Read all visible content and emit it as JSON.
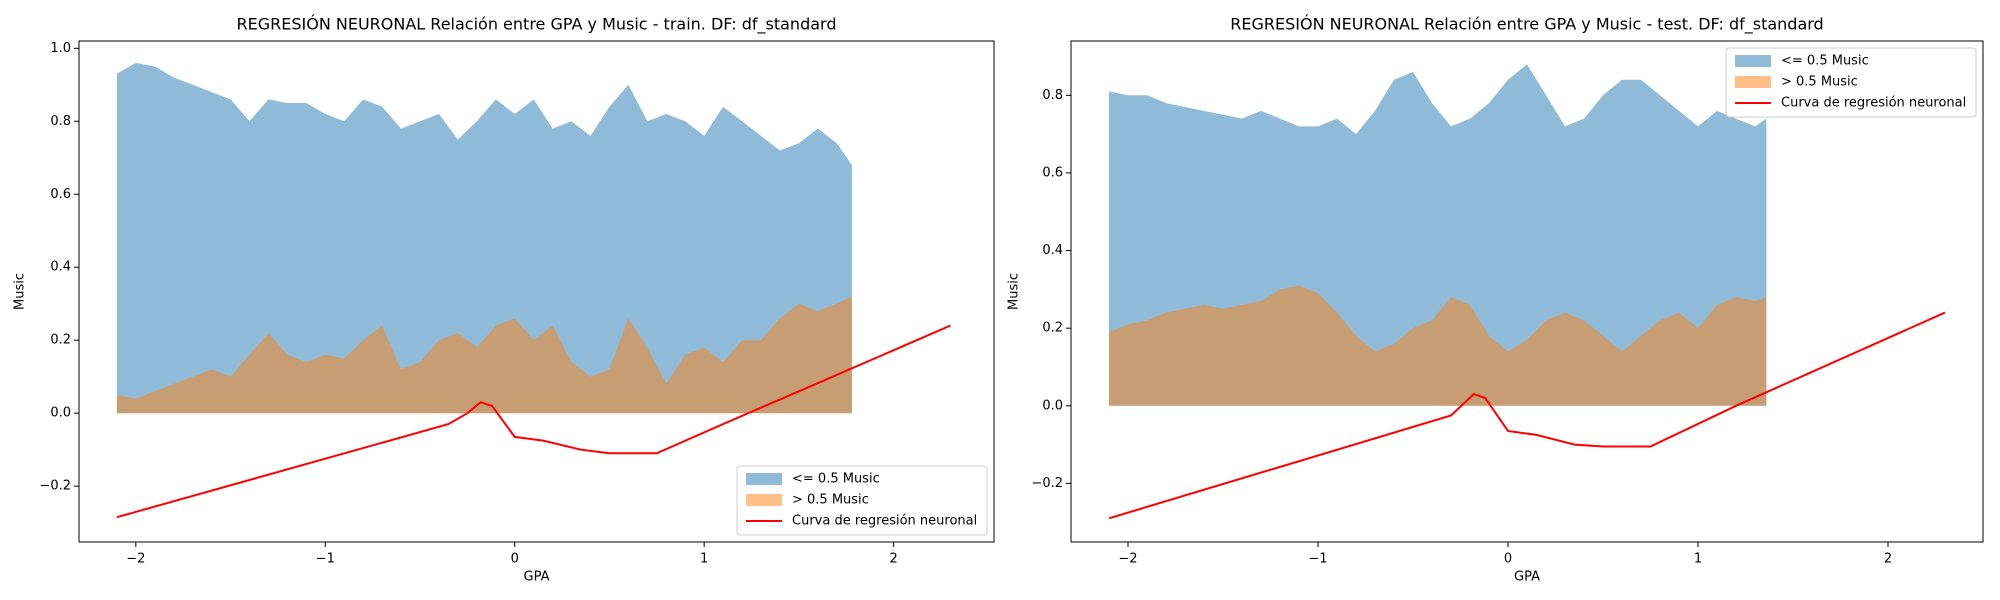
{
  "chart_data": [
    {
      "type": "area",
      "title": "REGRESIÓN NEURONAL Relación entre GPA y Music - train. DF: df_standard",
      "x_label": "GPA",
      "y_label": "Music",
      "legend": "lower right",
      "xlim": [
        -2.3,
        2.53
      ],
      "ylim": [
        -0.353,
        1.02
      ],
      "xticks": [
        {
          "value": -2,
          "label": "−2"
        },
        {
          "value": -1,
          "label": "−1"
        },
        0,
        1,
        2
      ],
      "yticks": [
        {
          "value": -0.2,
          "label": "−0.2"
        },
        {
          "value": 0,
          "label": "0.0"
        },
        0.2,
        0.4,
        0.6,
        0.8,
        {
          "value": 1,
          "label": "1.0"
        }
      ],
      "series": [
        {
          "name": "<= 0.5 Music",
          "color": "#1f77b4",
          "type": "area",
          "x": [
            -2.1,
            -2.0,
            -1.9,
            -1.8,
            -1.7,
            -1.6,
            -1.5,
            -1.4,
            -1.3,
            -1.2,
            -1.1,
            -1.0,
            -0.9,
            -0.8,
            -0.7,
            -0.6,
            -0.5,
            -0.4,
            -0.3,
            -0.2,
            -0.1,
            0.0,
            0.1,
            0.2,
            0.3,
            0.4,
            0.5,
            0.6,
            0.7,
            0.8,
            0.9,
            1.0,
            1.1,
            1.2,
            1.3,
            1.4,
            1.5,
            1.6,
            1.7,
            1.78
          ],
          "values": [
            0.93,
            0.96,
            0.95,
            0.92,
            0.9,
            0.88,
            0.86,
            0.8,
            0.86,
            0.85,
            0.85,
            0.82,
            0.8,
            0.86,
            0.84,
            0.78,
            0.8,
            0.82,
            0.75,
            0.8,
            0.86,
            0.82,
            0.86,
            0.78,
            0.8,
            0.76,
            0.84,
            0.9,
            0.8,
            0.82,
            0.8,
            0.76,
            0.84,
            0.8,
            0.76,
            0.72,
            0.74,
            0.78,
            0.74,
            0.68
          ]
        },
        {
          "name": "> 0.5 Music",
          "color": "#ff7f0e",
          "type": "area",
          "x": [
            -2.1,
            -2.0,
            -1.9,
            -1.8,
            -1.7,
            -1.6,
            -1.5,
            -1.4,
            -1.3,
            -1.2,
            -1.1,
            -1.0,
            -0.9,
            -0.8,
            -0.7,
            -0.6,
            -0.5,
            -0.4,
            -0.3,
            -0.2,
            -0.1,
            0.0,
            0.1,
            0.2,
            0.3,
            0.4,
            0.5,
            0.6,
            0.7,
            0.8,
            0.9,
            1.0,
            1.1,
            1.2,
            1.3,
            1.4,
            1.5,
            1.6,
            1.7,
            1.78
          ],
          "values": [
            0.05,
            0.04,
            0.06,
            0.08,
            0.1,
            0.12,
            0.1,
            0.16,
            0.22,
            0.16,
            0.14,
            0.16,
            0.15,
            0.2,
            0.24,
            0.12,
            0.14,
            0.2,
            0.22,
            0.18,
            0.24,
            0.26,
            0.2,
            0.24,
            0.14,
            0.1,
            0.12,
            0.26,
            0.18,
            0.08,
            0.16,
            0.18,
            0.14,
            0.2,
            0.2,
            0.26,
            0.3,
            0.28,
            0.3,
            0.32
          ]
        },
        {
          "name": "Curva de regresión neuronal",
          "color": "red",
          "type": "line",
          "x": [
            -2.1,
            -0.35,
            -0.25,
            -0.18,
            -0.12,
            0.0,
            0.15,
            0.35,
            0.5,
            0.75,
            1.1,
            1.5,
            2.3
          ],
          "values": [
            -0.285,
            -0.03,
            0.0,
            0.03,
            0.02,
            -0.065,
            -0.075,
            -0.1,
            -0.11,
            -0.11,
            -0.03,
            0.06,
            0.24
          ]
        }
      ]
    },
    {
      "type": "area",
      "title": "REGRESIÓN NEURONAL Relación entre GPA y Music - test. DF: df_standard",
      "x_label": "GPA",
      "y_label": "Music",
      "legend": "upper right",
      "xlim": [
        -2.3,
        2.5
      ],
      "ylim": [
        -0.351,
        0.94
      ],
      "xticks": [
        {
          "value": -2,
          "label": "−2"
        },
        {
          "value": -1,
          "label": "−1"
        },
        0,
        1,
        2
      ],
      "yticks": [
        {
          "value": -0.2,
          "label": "−0.2"
        },
        {
          "value": 0,
          "label": "0.0"
        },
        0.2,
        0.4,
        0.6,
        0.8
      ],
      "series": [
        {
          "name": "<= 0.5 Music",
          "color": "#1f77b4",
          "type": "area",
          "x": [
            -2.1,
            -2.0,
            -1.9,
            -1.8,
            -1.7,
            -1.6,
            -1.5,
            -1.4,
            -1.3,
            -1.2,
            -1.1,
            -1.0,
            -0.9,
            -0.8,
            -0.7,
            -0.6,
            -0.5,
            -0.4,
            -0.3,
            -0.2,
            -0.1,
            0.0,
            0.1,
            0.2,
            0.3,
            0.4,
            0.5,
            0.6,
            0.7,
            0.8,
            0.9,
            1.0,
            1.1,
            1.2,
            1.3,
            1.36
          ],
          "values": [
            0.81,
            0.8,
            0.8,
            0.78,
            0.77,
            0.76,
            0.75,
            0.74,
            0.76,
            0.74,
            0.72,
            0.72,
            0.74,
            0.7,
            0.76,
            0.84,
            0.86,
            0.78,
            0.72,
            0.74,
            0.78,
            0.84,
            0.88,
            0.8,
            0.72,
            0.74,
            0.8,
            0.84,
            0.84,
            0.8,
            0.76,
            0.72,
            0.76,
            0.74,
            0.72,
            0.74
          ]
        },
        {
          "name": "> 0.5 Music",
          "color": "#ff7f0e",
          "type": "area",
          "x": [
            -2.1,
            -2.0,
            -1.9,
            -1.8,
            -1.7,
            -1.6,
            -1.5,
            -1.4,
            -1.3,
            -1.2,
            -1.1,
            -1.0,
            -0.9,
            -0.8,
            -0.7,
            -0.6,
            -0.5,
            -0.4,
            -0.3,
            -0.2,
            -0.1,
            0.0,
            0.1,
            0.2,
            0.3,
            0.4,
            0.5,
            0.6,
            0.7,
            0.8,
            0.9,
            1.0,
            1.1,
            1.2,
            1.3,
            1.36
          ],
          "values": [
            0.19,
            0.21,
            0.22,
            0.24,
            0.25,
            0.26,
            0.25,
            0.26,
            0.27,
            0.3,
            0.31,
            0.29,
            0.24,
            0.18,
            0.14,
            0.16,
            0.2,
            0.22,
            0.28,
            0.26,
            0.18,
            0.14,
            0.17,
            0.22,
            0.24,
            0.22,
            0.18,
            0.14,
            0.18,
            0.22,
            0.24,
            0.2,
            0.26,
            0.28,
            0.27,
            0.28
          ]
        },
        {
          "name": "Curva de regresión neuronal",
          "color": "red",
          "type": "line",
          "x": [
            -2.1,
            -0.3,
            -0.18,
            -0.12,
            0.0,
            0.15,
            0.35,
            0.5,
            0.75,
            1.2,
            2.3
          ],
          "values": [
            -0.29,
            -0.025,
            0.03,
            0.02,
            -0.065,
            -0.075,
            -0.1,
            -0.105,
            -0.105,
            0.0,
            0.24
          ]
        }
      ]
    }
  ]
}
